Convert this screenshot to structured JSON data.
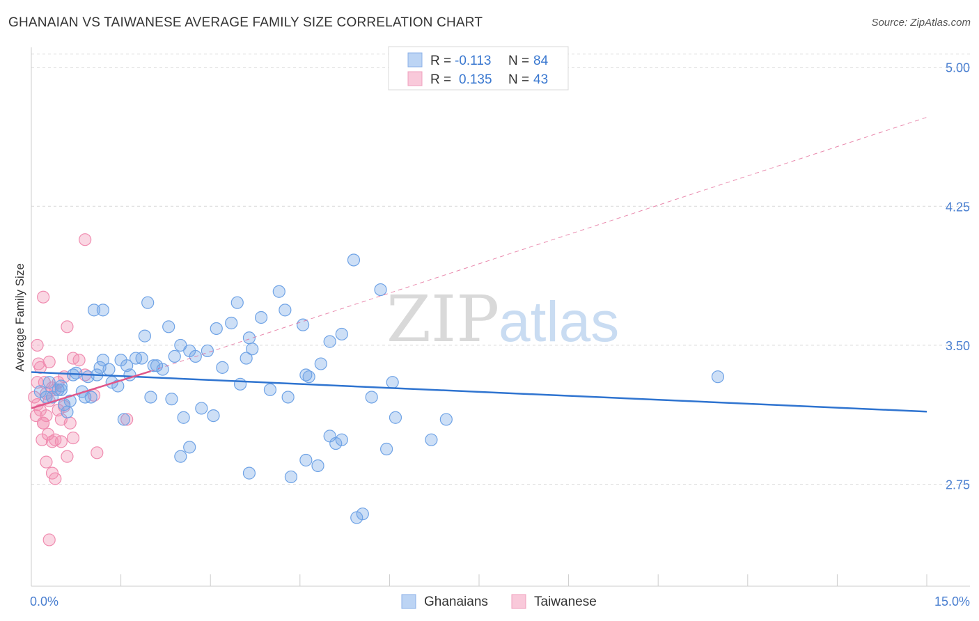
{
  "title": "GHANAIAN VS TAIWANESE AVERAGE FAMILY SIZE CORRELATION CHART",
  "source": "Source: ZipAtlas.com",
  "watermark": {
    "zip": "ZIP",
    "atlas": "atlas"
  },
  "colors": {
    "ghanaians": "#6fa3e6",
    "taiwanese": "#f08cb0",
    "blue_line": "#2f74d0",
    "pink_line": "#e0578a",
    "axis_text": "#4a7fd0",
    "grid": "#d9d9d9"
  },
  "legend_stats": [
    {
      "r_label": "R =",
      "r_value": "-0.113",
      "n_label": "N =",
      "n_value": "84"
    },
    {
      "r_label": "R =",
      "r_value": "0.135",
      "n_label": "N =",
      "n_value": "43"
    }
  ],
  "chart_data": {
    "type": "scatter",
    "xlabel": "",
    "ylabel": "Average Family Size",
    "xlim": [
      0,
      15
    ],
    "ylim": [
      2.2,
      5.1
    ],
    "x_tick_labels": [
      "0.0%",
      "15.0%"
    ],
    "y_ticks": [
      2.75,
      3.5,
      4.25,
      5.0
    ],
    "y_tick_labels": [
      "2.75",
      "3.50",
      "4.25",
      "5.00"
    ],
    "grid": "horizontal dashed",
    "legend_placement": "bottom-center",
    "series": [
      {
        "name": "Ghanaians",
        "points": [
          [
            0.15,
            3.25
          ],
          [
            0.25,
            3.22
          ],
          [
            0.3,
            3.3
          ],
          [
            0.35,
            3.22
          ],
          [
            0.45,
            3.26
          ],
          [
            0.5,
            3.26
          ],
          [
            0.55,
            3.18
          ],
          [
            0.6,
            3.14
          ],
          [
            0.65,
            3.2
          ],
          [
            0.7,
            3.34
          ],
          [
            0.75,
            3.35
          ],
          [
            0.85,
            3.25
          ],
          [
            0.9,
            3.22
          ],
          [
            1.0,
            3.22
          ],
          [
            1.1,
            3.34
          ],
          [
            1.15,
            3.38
          ],
          [
            1.2,
            3.42
          ],
          [
            1.3,
            3.37
          ],
          [
            1.45,
            3.28
          ],
          [
            1.5,
            3.42
          ],
          [
            1.6,
            3.39
          ],
          [
            1.65,
            3.34
          ],
          [
            1.75,
            3.43
          ],
          [
            1.85,
            3.43
          ],
          [
            1.2,
            3.69
          ],
          [
            1.9,
            3.55
          ],
          [
            1.95,
            3.73
          ],
          [
            2.0,
            3.22
          ],
          [
            2.05,
            3.39
          ],
          [
            2.1,
            3.39
          ],
          [
            2.2,
            3.37
          ],
          [
            2.3,
            3.6
          ],
          [
            2.35,
            3.21
          ],
          [
            2.4,
            3.44
          ],
          [
            2.5,
            3.5
          ],
          [
            2.55,
            3.11
          ],
          [
            2.65,
            3.47
          ],
          [
            2.75,
            3.44
          ],
          [
            2.85,
            3.16
          ],
          [
            2.95,
            3.47
          ],
          [
            3.1,
            3.59
          ],
          [
            3.2,
            3.38
          ],
          [
            3.35,
            3.62
          ],
          [
            3.45,
            3.73
          ],
          [
            3.5,
            3.29
          ],
          [
            3.6,
            3.43
          ],
          [
            3.65,
            3.54
          ],
          [
            3.7,
            3.48
          ],
          [
            3.85,
            3.65
          ],
          [
            4.0,
            3.26
          ],
          [
            4.15,
            3.79
          ],
          [
            4.25,
            3.69
          ],
          [
            4.3,
            3.22
          ],
          [
            4.55,
            3.61
          ],
          [
            4.6,
            3.34
          ],
          [
            4.65,
            3.33
          ],
          [
            4.85,
            3.4
          ],
          [
            5.0,
            3.52
          ],
          [
            5.2,
            3.56
          ],
          [
            5.4,
            3.96
          ],
          [
            5.7,
            3.22
          ],
          [
            5.85,
            3.8
          ],
          [
            6.05,
            3.3
          ],
          [
            6.1,
            3.11
          ],
          [
            6.95,
            3.1
          ],
          [
            11.5,
            3.33
          ],
          [
            1.05,
            3.69
          ],
          [
            1.55,
            3.1
          ],
          [
            2.65,
            2.95
          ],
          [
            2.5,
            2.9
          ],
          [
            3.65,
            2.81
          ],
          [
            4.35,
            2.79
          ],
          [
            4.6,
            2.88
          ],
          [
            4.8,
            2.85
          ],
          [
            5.0,
            3.01
          ],
          [
            5.1,
            2.97
          ],
          [
            5.2,
            2.99
          ],
          [
            5.45,
            2.57
          ],
          [
            5.55,
            2.59
          ],
          [
            5.95,
            2.94
          ],
          [
            6.7,
            2.99
          ],
          [
            0.5,
            3.28
          ],
          [
            0.95,
            3.33
          ],
          [
            1.35,
            3.3
          ],
          [
            3.05,
            3.12
          ]
        ]
      },
      {
        "name": "Taiwanese",
        "points": [
          [
            0.05,
            3.22
          ],
          [
            0.1,
            3.18
          ],
          [
            0.12,
            3.4
          ],
          [
            0.15,
            3.15
          ],
          [
            0.2,
            3.08
          ],
          [
            0.22,
            3.3
          ],
          [
            0.25,
            3.12
          ],
          [
            0.28,
            3.02
          ],
          [
            0.3,
            3.2
          ],
          [
            0.35,
            2.98
          ],
          [
            0.4,
            3.26
          ],
          [
            0.45,
            3.15
          ],
          [
            0.5,
            2.98
          ],
          [
            0.55,
            3.17
          ],
          [
            0.6,
            2.9
          ],
          [
            0.65,
            3.08
          ],
          [
            0.7,
            3.0
          ],
          [
            0.1,
            3.5
          ],
          [
            0.15,
            3.38
          ],
          [
            0.2,
            3.08
          ],
          [
            0.25,
            3.24
          ],
          [
            0.3,
            3.41
          ],
          [
            0.35,
            2.81
          ],
          [
            0.4,
            2.99
          ],
          [
            0.45,
            3.3
          ],
          [
            0.6,
            3.6
          ],
          [
            0.7,
            3.43
          ],
          [
            0.8,
            3.42
          ],
          [
            0.9,
            3.34
          ],
          [
            1.05,
            3.23
          ],
          [
            1.1,
            2.92
          ],
          [
            1.6,
            3.1
          ],
          [
            0.9,
            4.07
          ],
          [
            0.2,
            3.76
          ],
          [
            0.25,
            2.87
          ],
          [
            0.3,
            2.45
          ],
          [
            0.4,
            2.78
          ],
          [
            0.55,
            3.33
          ],
          [
            0.1,
            3.3
          ],
          [
            0.08,
            3.12
          ],
          [
            0.18,
            2.99
          ],
          [
            0.35,
            3.27
          ],
          [
            0.5,
            3.1
          ]
        ]
      }
    ],
    "trend_lines": [
      {
        "series": "Ghanaians",
        "x": [
          0,
          15
        ],
        "y": [
          3.355,
          3.142
        ]
      },
      {
        "series": "Taiwanese",
        "x": [
          0,
          2.0
        ],
        "y": [
          3.16,
          3.36
        ],
        "extended_x": [
          2.0,
          15
        ],
        "extended_y": [
          3.36,
          4.73
        ]
      }
    ]
  }
}
